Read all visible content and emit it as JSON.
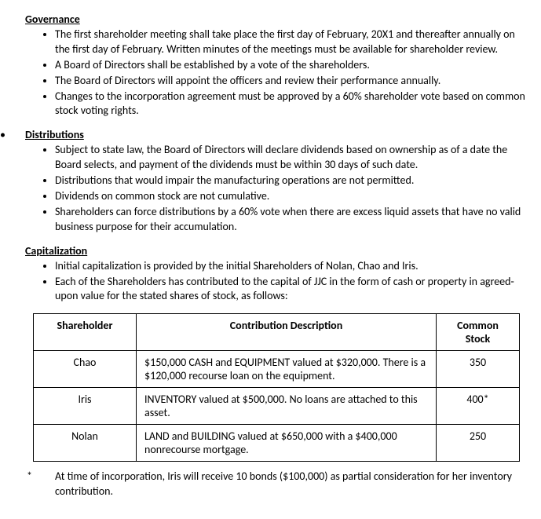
{
  "sections": {
    "governance": {
      "heading": "Governance",
      "items": [
        "The first shareholder meeting shall take place the first day of February, 20X1 and thereafter annually on the first day of February. Written minutes of the meetings must be available for shareholder review.",
        "A Board of Directors shall be established by a vote of the shareholders.",
        "The Board of Directors will appoint the officers and review their performance annually.",
        "Changes to the incorporation agreement must be approved by a 60% shareholder vote based on common stock voting rights."
      ]
    },
    "distributions": {
      "heading": "Distributions",
      "items": [
        "Subject to state law, the Board of Directors will declare dividends based on ownership as of a date the Board selects, and payment of the dividends must be within 30 days of such date.",
        "Distributions that would impair the manufacturing operations are not permitted.",
        "Dividends on common stock are not cumulative.",
        "Shareholders can force distributions by a 60% vote when there are excess liquid assets that have no valid business purpose for their accumulation."
      ]
    },
    "capitalization": {
      "heading": "Capitalization",
      "items": [
        "Initial capitalization is provided by the initial Shareholders of Nolan, Chao and Iris.",
        "Each of the Shareholders has contributed to the capital of JJC in the form of cash or property in agreed-upon value for the stated shares of stock, as follows:"
      ]
    }
  },
  "table": {
    "columns": [
      "Shareholder",
      "Contribution Description",
      "Common Stock"
    ],
    "rows": [
      [
        "Chao",
        "$150,000 CASH and EQUIPMENT valued at $320,000. There is a $120,000 recourse loan on the equipment.",
        "350"
      ],
      [
        "Iris",
        "INVENTORY valued at $500,000. No loans are attached to this asset.",
        "400*"
      ],
      [
        "Nolan",
        "LAND and BUILDING valued at $650,000 with a $400,000 nonrecourse mortgage.",
        "250"
      ]
    ]
  },
  "footnote": {
    "marker": "*",
    "text": "At time of incorporation, Iris will receive 10 bonds ($100,000) as partial consideration for her inventory contribution."
  }
}
